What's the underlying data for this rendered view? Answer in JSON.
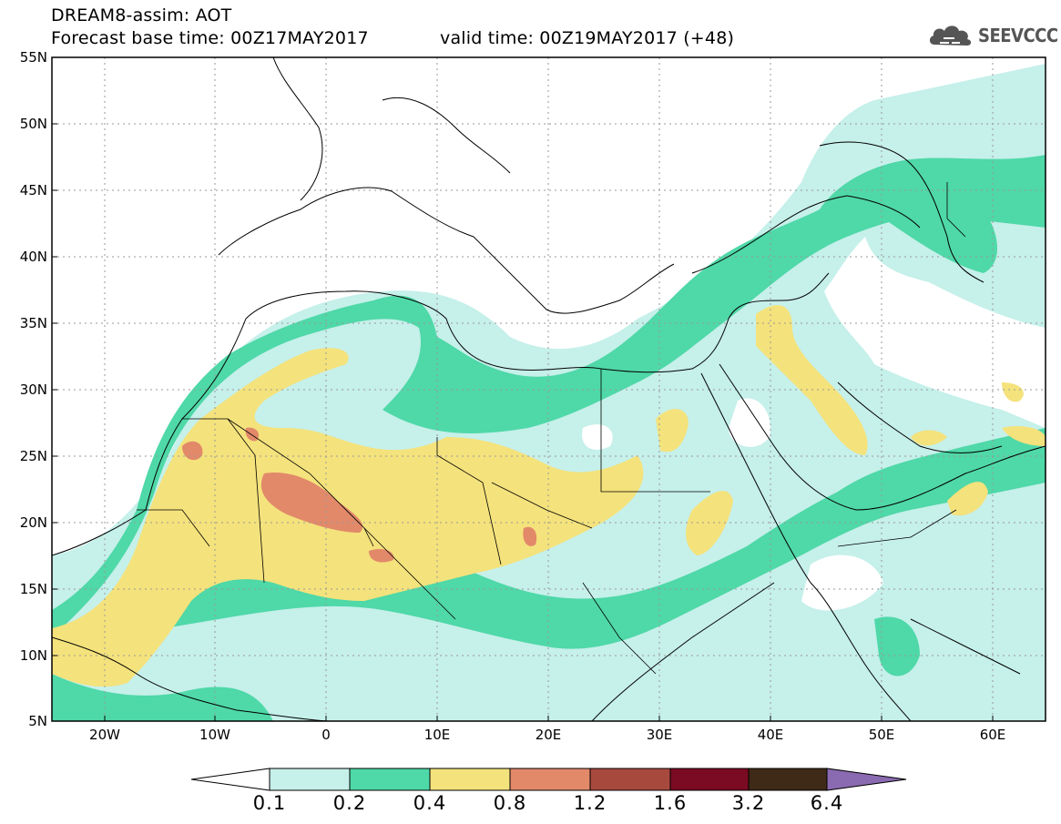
{
  "title": {
    "line1": "DREAM8-assim: AOT",
    "line2": "Forecast base time: 00Z17MAY2017",
    "line3": "valid time: 00Z19MAY2017 (+48)"
  },
  "logo": {
    "text": "SEEVCCC"
  },
  "map": {
    "lat_labels": [
      "55N",
      "50N",
      "45N",
      "40N",
      "35N",
      "30N",
      "25N",
      "20N",
      "15N",
      "10N",
      "5N"
    ],
    "lon_labels": [
      "20W",
      "10W",
      "0",
      "10E",
      "20E",
      "30E",
      "40E",
      "50E",
      "60E"
    ],
    "lat_range": [
      5,
      55
    ],
    "lon_range": [
      -25,
      65
    ],
    "gridlines": "dotted"
  },
  "colorbar": {
    "labels": [
      "0.1",
      "0.2",
      "0.4",
      "0.8",
      "1.2",
      "1.6",
      "3.2",
      "6.4"
    ],
    "colors": [
      "#ffffff",
      "#c6f0ea",
      "#4fd8a8",
      "#f4e27c",
      "#e2896a",
      "#a8493e",
      "#7a0b22",
      "#3f2a17",
      "#8a6ab0"
    ]
  },
  "legend_colors": {
    "below": "#ffffff",
    "c1": "#c6f0ea",
    "c2": "#4fd8a8",
    "c3": "#f4e27c",
    "c4": "#e2896a",
    "c5": "#a8493e",
    "c6": "#7a0b22",
    "c7": "#3f2a17",
    "above": "#8a6ab0"
  }
}
